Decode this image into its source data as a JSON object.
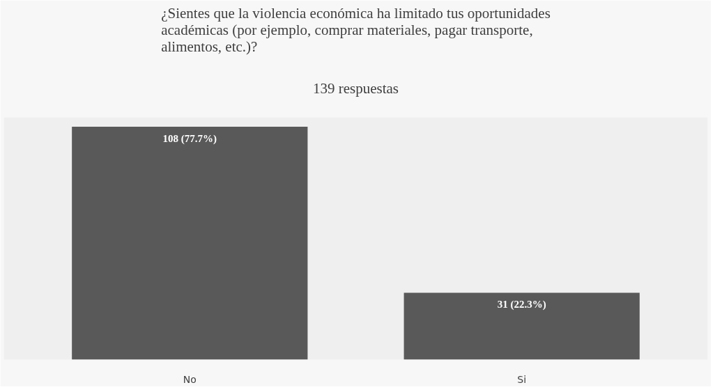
{
  "chart_data": {
    "type": "bar",
    "title": "¿Sientes que la violencia económica ha limitado tus oportunidades\nacadémicas (por ejemplo, comprar materiales, pagar transporte,\nalimentos, etc.)?",
    "subtitle": "139 respuestas",
    "categories": [
      "No",
      "Si"
    ],
    "values": [
      108,
      31
    ],
    "value_labels": [
      "108 (77.7%)",
      "31 (22.3%)"
    ],
    "color": "#595959",
    "grid": false
  }
}
